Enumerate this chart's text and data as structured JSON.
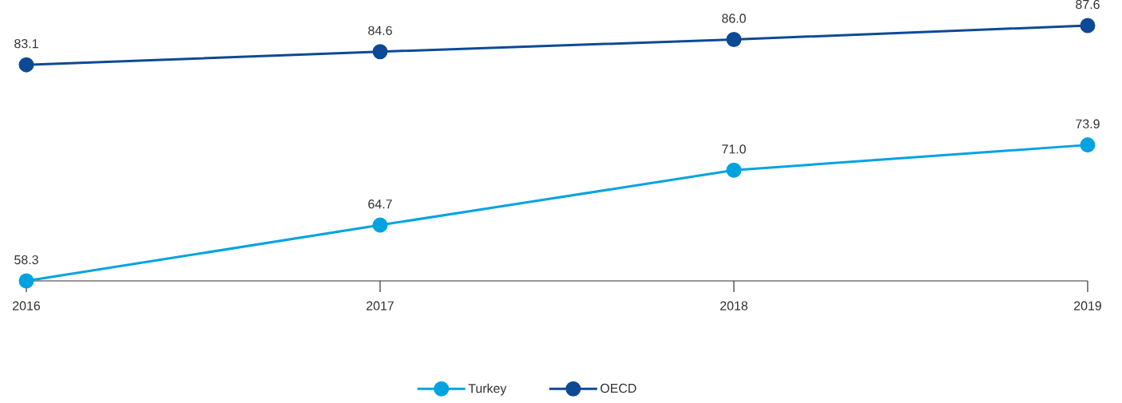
{
  "chart_data": {
    "type": "line",
    "categories": [
      "2016",
      "2017",
      "2018",
      "2019"
    ],
    "series": [
      {
        "name": "Turkey",
        "color": "#00a3e0",
        "values": [
          58.3,
          64.7,
          71.0,
          73.9
        ],
        "value_labels": [
          "58.3",
          "64.7",
          "71.0",
          "73.9"
        ]
      },
      {
        "name": "OECD",
        "color": "#0c4a96",
        "values": [
          83.1,
          84.6,
          86.0,
          87.6
        ],
        "value_labels": [
          "83.1",
          "84.6",
          "86.0",
          "87.6"
        ]
      }
    ],
    "marker": "circle",
    "line_style": "solid",
    "legend": "bottom"
  }
}
